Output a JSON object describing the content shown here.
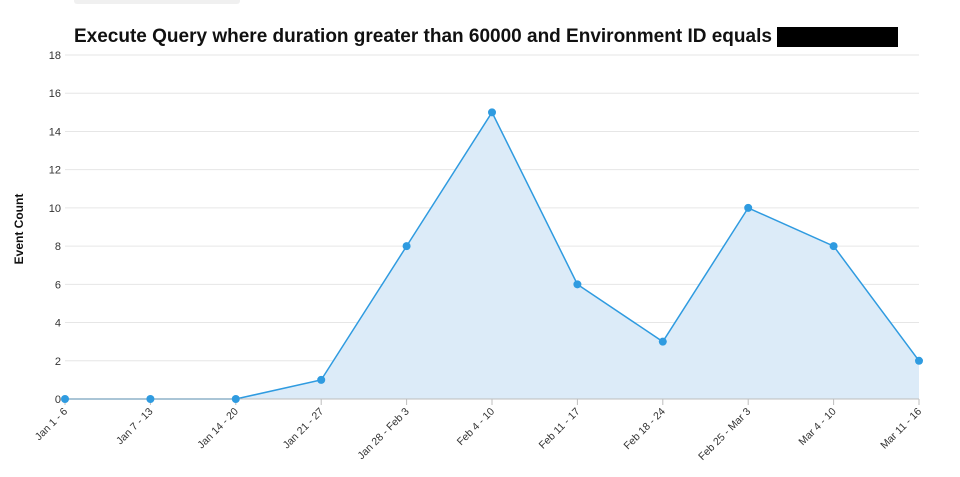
{
  "chart_data": {
    "type": "area",
    "title": "Execute Query where duration greater than 60000 and Environment ID equals",
    "title_redacted": true,
    "xlabel": "",
    "ylabel": "Event Count",
    "ylim": [
      0,
      18
    ],
    "yticks": [
      0,
      2,
      4,
      6,
      8,
      10,
      12,
      14,
      16,
      18
    ],
    "categories": [
      "Jan 1 - 6",
      "Jan 7 - 13",
      "Jan 14 - 20",
      "Jan 21 - 27",
      "Jan 28 - Feb 3",
      "Feb 4 - 10",
      "Feb 11 - 17",
      "Feb 18 - 24",
      "Feb 25 - Mar 3",
      "Mar 4 - 10",
      "Mar 11 - 16"
    ],
    "series": [
      {
        "values": [
          0,
          0,
          0,
          1,
          8,
          15,
          6,
          3,
          10,
          8,
          2
        ]
      }
    ],
    "grid": true,
    "colors": {
      "line": "#2f9be0",
      "fill": "#dcebf8",
      "grid": "#e6e6e6",
      "axis": "#bdbdbd"
    }
  }
}
